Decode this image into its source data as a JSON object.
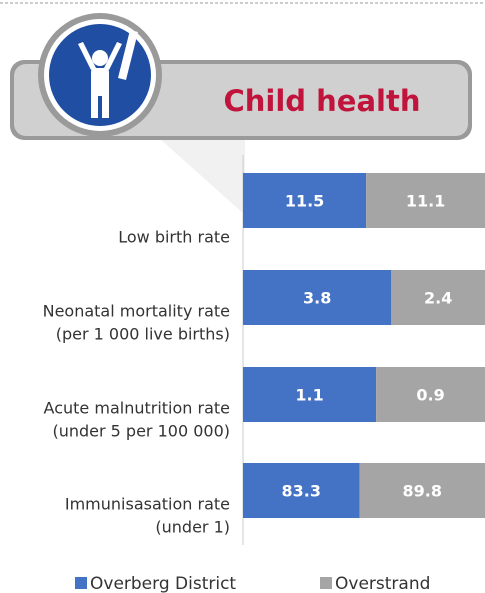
{
  "chart_data": {
    "type": "stacked-bar-100",
    "title": "Child health",
    "categories": [
      [
        "Low birth rate"
      ],
      [
        "Neonatal mortality rate",
        "(per 1 000 live births)"
      ],
      [
        "Acute malnutrition rate",
        "(under 5 per 100 000)"
      ],
      [
        "Immunisasation rate",
        "(under 1)"
      ]
    ],
    "series": [
      {
        "name": "Overberg District",
        "color": "#4472c4",
        "values": [
          11.5,
          3.8,
          1.1,
          83.3
        ]
      },
      {
        "name": "Overstrand",
        "color": "#a5a5a5",
        "values": [
          11.1,
          2.4,
          0.9,
          89.8
        ]
      }
    ]
  }
}
